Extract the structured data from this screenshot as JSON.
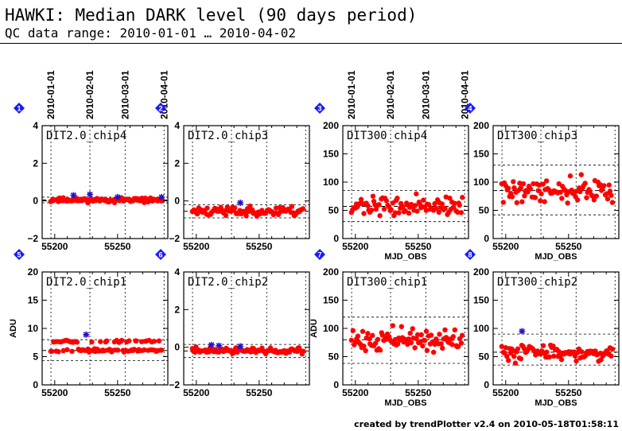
{
  "header": {
    "title": "HAWKI: Median DARK level (90 days period)",
    "subtitle": "QC data range: 2010-01-01 … 2010-04-02"
  },
  "footer": {
    "text": "created by trendPlotter v2.4 on 2010-05-18T01:58:11"
  },
  "colors": {
    "points": "#ff0000",
    "outliers": "#2a10c8",
    "badge": "#1a1aff"
  },
  "date_ticks": [
    "2010-01-01",
    "2010-02-01",
    "2010-03-01",
    "2010-04-01"
  ],
  "chart_data": [
    {
      "id": 1,
      "name": "DIT2.0_chip4",
      "type": "scatter",
      "ylim": [
        -2,
        4
      ],
      "yticks": [
        -2,
        0,
        2,
        4
      ],
      "xlim": [
        55190,
        55290
      ],
      "xticks": [
        55200,
        55250
      ],
      "xlabel": "",
      "ylabel": "",
      "mean": 0.05,
      "band": [
        -0.1,
        0.2
      ],
      "spread": 0.07,
      "seed": 11,
      "outliers": [
        [
          55215,
          0.3
        ],
        [
          55228,
          0.35
        ],
        [
          55250,
          0.2
        ],
        [
          55285,
          0.2
        ]
      ]
    },
    {
      "id": 2,
      "name": "DIT2.0_chip3",
      "type": "scatter",
      "ylim": [
        -2,
        4
      ],
      "yticks": [
        -2,
        0,
        2,
        4
      ],
      "xlim": [
        55190,
        55290
      ],
      "xticks": [
        55200,
        55250
      ],
      "xlabel": "",
      "ylabel": "",
      "mean": -0.55,
      "band": [
        -0.9,
        -0.2
      ],
      "spread": 0.16,
      "seed": 23,
      "outliers": [
        [
          55235,
          -0.1
        ]
      ]
    },
    {
      "id": 3,
      "name": "DIT300_chip4",
      "type": "scatter",
      "ylim": [
        0,
        200
      ],
      "yticks": [
        0,
        50,
        100,
        150,
        200
      ],
      "xlim": [
        55190,
        55290
      ],
      "xticks": [
        55200,
        55250
      ],
      "xlabel": "MJD_OBS",
      "ylabel": "",
      "mean": 57,
      "band": [
        30,
        85
      ],
      "spread": 10,
      "seed": 37,
      "outliers": []
    },
    {
      "id": 4,
      "name": "DIT300_chip3",
      "type": "scatter",
      "ylim": [
        0,
        200
      ],
      "yticks": [
        0,
        50,
        100,
        150,
        200
      ],
      "xlim": [
        55190,
        55290
      ],
      "xticks": [
        55200,
        55250
      ],
      "xlabel": "MJD_OBS",
      "ylabel": "",
      "mean": 85,
      "band": [
        42,
        130
      ],
      "spread": 13,
      "seed": 41,
      "outliers": []
    },
    {
      "id": 5,
      "name": "DIT2.0_chip1",
      "type": "scatter",
      "ylim": [
        0,
        20
      ],
      "yticks": [
        0,
        5,
        10,
        15,
        20
      ],
      "xlim": [
        55190,
        55290
      ],
      "xticks": [
        55200,
        55250
      ],
      "xlabel": "",
      "ylabel": "ADU",
      "mean": 6.1,
      "band": [
        4.3,
        8.0
      ],
      "spread": 0.15,
      "seed": 53,
      "upper": 7.7,
      "outliers": [
        [
          55225,
          8.9
        ]
      ]
    },
    {
      "id": 6,
      "name": "DIT2.0_chip2",
      "type": "scatter",
      "ylim": [
        -2,
        4
      ],
      "yticks": [
        -2,
        0,
        2,
        4
      ],
      "xlim": [
        55190,
        55290
      ],
      "xticks": [
        55200,
        55250
      ],
      "xlabel": "",
      "ylabel": "",
      "mean": -0.2,
      "band": [
        -0.55,
        0.15
      ],
      "spread": 0.1,
      "seed": 61,
      "outliers": [
        [
          55212,
          0.12
        ],
        [
          55218,
          0.08
        ],
        [
          55235,
          0.05
        ]
      ]
    },
    {
      "id": 7,
      "name": "DIT300_chip1",
      "type": "scatter",
      "ylim": [
        0,
        200
      ],
      "yticks": [
        0,
        50,
        100,
        150,
        200
      ],
      "xlim": [
        55190,
        55290
      ],
      "xticks": [
        55200,
        55250
      ],
      "xlabel": "MJD_OBS",
      "ylabel": "ADU",
      "mean": 80,
      "band": [
        38,
        120
      ],
      "spread": 12,
      "seed": 71,
      "outliers": []
    },
    {
      "id": 8,
      "name": "DIT300_chip2",
      "type": "scatter",
      "ylim": [
        0,
        200
      ],
      "yticks": [
        0,
        50,
        100,
        150,
        200
      ],
      "xlim": [
        55190,
        55290
      ],
      "xticks": [
        55200,
        55250
      ],
      "xlabel": "MJD_OBS",
      "ylabel": "",
      "mean": 58,
      "band": [
        35,
        90
      ],
      "spread": 9,
      "seed": 83,
      "outliers": [
        [
          55213,
          95
        ]
      ]
    }
  ]
}
